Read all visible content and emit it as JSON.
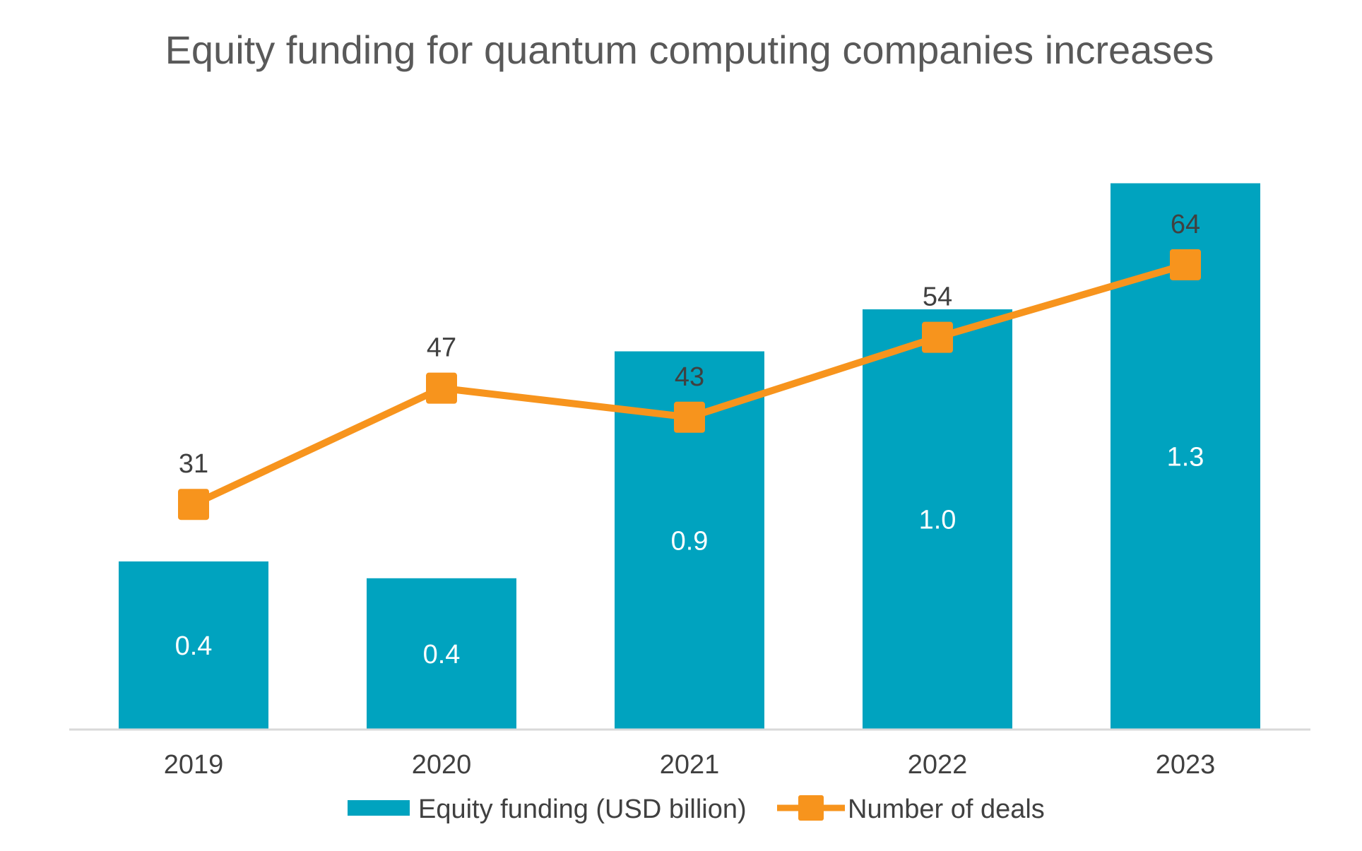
{
  "chart_data": {
    "type": "bar",
    "title": "Equity funding for quantum computing companies increases",
    "categories": [
      "2019",
      "2020",
      "2021",
      "2022",
      "2023"
    ],
    "series": [
      {
        "name": "Equity funding (USD billion)",
        "kind": "bar",
        "axis": "primary",
        "values": [
          0.4,
          0.36,
          0.9,
          1.0,
          1.3
        ],
        "labels": [
          "0.4",
          "0.4",
          "0.9",
          "1.0",
          "1.3"
        ],
        "color": "#00A3BF",
        "label_color": "#FFFFFF"
      },
      {
        "name": "Number of deals",
        "kind": "line",
        "axis": "secondary",
        "marker": "square",
        "values": [
          31,
          47,
          43,
          54,
          64
        ],
        "labels": [
          "31",
          "47",
          "43",
          "54",
          "64"
        ],
        "color": "#F7941D",
        "label_color": "#404040"
      }
    ],
    "primary_ylim": [
      0,
      1.4
    ],
    "secondary_ylim": [
      0,
      81
    ],
    "grid": false,
    "legend_position": "bottom",
    "colors": {
      "title": "#595959",
      "tick_label": "#404040",
      "axis_line": "#D9D9D9"
    }
  }
}
